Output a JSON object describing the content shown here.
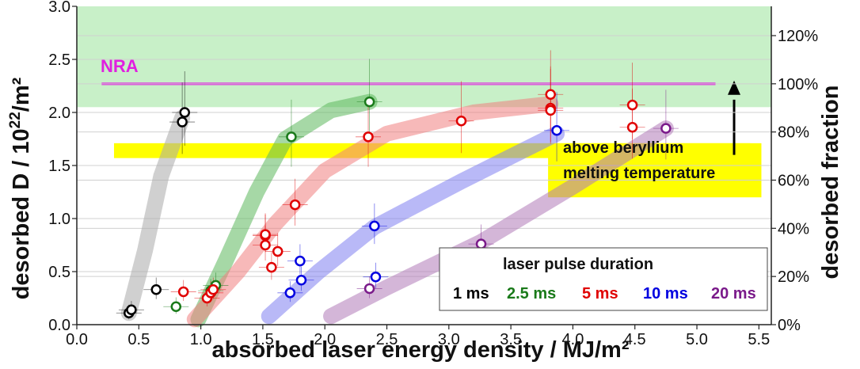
{
  "chart_data": {
    "type": "scatter",
    "xlabel": "absorbed laser energy density / MJ/m²",
    "ylabel_main": "desorbed D / 10",
    "ylabel_sup": "22",
    "ylabel_tail": "/m²",
    "y2label": "desorbed fraction",
    "xlim": [
      0.0,
      5.6
    ],
    "ylim": [
      0.0,
      3.0
    ],
    "x_ticks": [
      "0.0",
      "0.5",
      "1.0",
      "1.5",
      "2.0",
      "2.5",
      "3.0",
      "3.5",
      "4.0",
      "4.5",
      "5.0",
      "5.5"
    ],
    "y_ticks": [
      "0.0",
      "0.5",
      "1.0",
      "1.5",
      "2.0",
      "2.5",
      "3.0"
    ],
    "y2_ticks": [
      "0%",
      "20%",
      "40%",
      "60%",
      "80%",
      "100%",
      "120%"
    ],
    "y2_reference": 2.27,
    "grid": true,
    "nra_label": "NRA",
    "nra_level": 2.27,
    "nra_band": [
      2.05,
      3.0
    ],
    "melting_label_1": "above beryllium",
    "melting_label_2": "melting temperature",
    "melting_band": [
      1.57,
      1.71
    ],
    "legend_title": "laser pulse duration",
    "legend_position": "bottom-right",
    "series": [
      {
        "name": "1 ms",
        "color": "#000000",
        "trend_color": "#a9a9a9",
        "x": [
          0.42,
          0.44,
          0.64,
          0.85,
          0.87
        ],
        "y": [
          0.11,
          0.14,
          0.33,
          1.91,
          2.0
        ],
        "trend": [
          [
            0.42,
            0.11
          ],
          [
            0.55,
            0.7
          ],
          [
            0.68,
            1.4
          ],
          [
            0.85,
            1.95
          ]
        ]
      },
      {
        "name": "2.5 ms",
        "color": "#1a7a1a",
        "trend_color": "#5cb85c",
        "x": [
          0.8,
          1.08,
          1.12,
          1.73,
          2.36
        ],
        "y": [
          0.17,
          0.32,
          0.37,
          1.77,
          2.1
        ],
        "trend": [
          [
            0.98,
            0.05
          ],
          [
            1.2,
            0.6
          ],
          [
            1.45,
            1.25
          ],
          [
            1.68,
            1.75
          ],
          [
            2.05,
            2.02
          ],
          [
            2.36,
            2.1
          ]
        ]
      },
      {
        "name": "5 ms",
        "color": "#e00000",
        "trend_color": "#f08080",
        "x": [
          0.86,
          1.05,
          1.08,
          1.1,
          1.52,
          1.52,
          1.52,
          1.57,
          1.62,
          1.76,
          2.35,
          3.1,
          3.82,
          3.82,
          3.82,
          4.48,
          4.48
        ],
        "y": [
          0.31,
          0.25,
          0.3,
          0.33,
          0.75,
          0.84,
          0.85,
          0.54,
          0.69,
          1.13,
          1.77,
          1.92,
          2.17,
          2.04,
          2.02,
          2.07,
          1.86
        ],
        "trend": [
          [
            0.95,
            0.05
          ],
          [
            1.3,
            0.5
          ],
          [
            1.6,
            0.95
          ],
          [
            2.0,
            1.45
          ],
          [
            2.5,
            1.8
          ],
          [
            3.2,
            2.0
          ],
          [
            3.82,
            2.08
          ]
        ]
      },
      {
        "name": "10 ms",
        "color": "#0000e0",
        "trend_color": "#8080f0",
        "x": [
          1.72,
          1.81,
          1.8,
          2.4,
          2.41,
          3.87
        ],
        "y": [
          0.3,
          0.42,
          0.6,
          0.93,
          0.45,
          1.83
        ],
        "trend": [
          [
            1.55,
            0.08
          ],
          [
            1.95,
            0.5
          ],
          [
            2.4,
            0.92
          ],
          [
            3.1,
            1.35
          ],
          [
            3.87,
            1.8
          ]
        ]
      },
      {
        "name": "20 ms",
        "color": "#7a1a8a",
        "trend_color": "#b07ab8",
        "x": [
          2.36,
          3.26,
          4.75
        ],
        "y": [
          0.34,
          0.76,
          1.85
        ],
        "trend": [
          [
            2.05,
            0.08
          ],
          [
            2.5,
            0.35
          ],
          [
            3.26,
            0.78
          ],
          [
            4.0,
            1.3
          ],
          [
            4.75,
            1.85
          ]
        ]
      }
    ]
  },
  "colors": {
    "nra_band": "#c8f0c8",
    "nra_line": "#e020e0",
    "melting_band": "#ffff00",
    "grid": "#d0d0d0",
    "arrow": "#000000"
  }
}
